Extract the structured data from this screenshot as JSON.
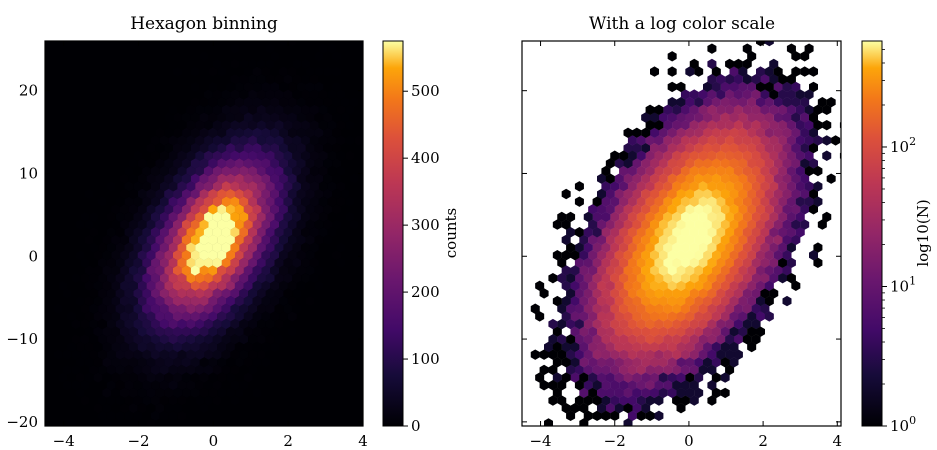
{
  "chart_data": [
    {
      "type": "heatmap",
      "subtype": "hexbin",
      "title": "Hexagon binning",
      "xlim": [
        -4.5,
        4
      ],
      "ylim": [
        -20.5,
        26
      ],
      "xticks": [
        -4,
        -2,
        0,
        2,
        4
      ],
      "xtick_labels": [
        "−4",
        "−2",
        "0",
        "2",
        "4"
      ],
      "yticks": [
        -20,
        -10,
        0,
        10,
        20
      ],
      "ytick_labels": [
        "−20",
        "−10",
        "0",
        "10",
        "20"
      ],
      "colormap": "inferno",
      "color_scale": "linear",
      "background_color": "#000004",
      "colorbar": {
        "label": "counts",
        "range": [
          0,
          575
        ],
        "ticks": [
          0,
          100,
          200,
          300,
          400,
          500
        ],
        "tick_labels": [
          "0",
          "100",
          "200",
          "300",
          "400",
          "500"
        ]
      },
      "distribution": {
        "x_mean": 0,
        "y_mean": 2,
        "x_std": 1,
        "y_std": 6,
        "correlation": 0.5
      }
    },
    {
      "type": "heatmap",
      "subtype": "hexbin",
      "title": "With a log color scale",
      "xlim": [
        -4.5,
        4.1
      ],
      "ylim": [
        -20.5,
        26
      ],
      "xticks": [
        -4,
        -2,
        0,
        2,
        4
      ],
      "xtick_labels": [
        "−4",
        "−2",
        "0",
        "2",
        "4"
      ],
      "yticks": [
        -20,
        -10,
        0,
        10,
        20
      ],
      "ytick_labels": [],
      "colormap": "inferno",
      "color_scale": "log",
      "background_color": "#ffffff",
      "colorbar": {
        "label": "log10(N)",
        "range": [
          1,
          575
        ],
        "ticks": [
          1,
          10,
          100
        ],
        "tick_labels": [
          "10",
          "10",
          "10"
        ],
        "tick_exponents": [
          "0",
          "1",
          "2"
        ]
      },
      "distribution": {
        "x_mean": 0,
        "y_mean": 2,
        "x_std": 1,
        "y_std": 6,
        "correlation": 0.5
      }
    }
  ]
}
